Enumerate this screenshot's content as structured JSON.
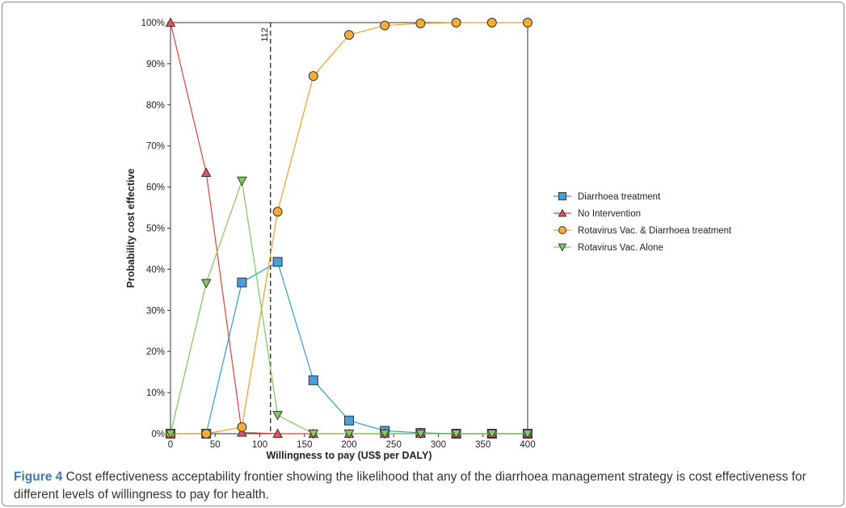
{
  "caption": {
    "label": "Figure 4",
    "text": " Cost effectiveness acceptability frontier showing the likelihood that any of the diarrhoea management strategy is cost effectiveness for different levels of willingness to pay for health."
  },
  "chart_data": {
    "type": "line",
    "xlabel": "Willingness to pay (US$ per DALY)",
    "ylabel": "Probability cost effective",
    "xlim": [
      0,
      400
    ],
    "ylim": [
      0,
      100
    ],
    "x_ticks": [
      "0",
      "50",
      "100",
      "150",
      "200",
      "250",
      "300",
      "350",
      "400"
    ],
    "y_ticks": [
      "0%",
      "10%",
      "20%",
      "30%",
      "40%",
      "50%",
      "60%",
      "70%",
      "80%",
      "90%",
      "100%"
    ],
    "grid": false,
    "legend_position": "right",
    "x": [
      0,
      40,
      80,
      120,
      160,
      200,
      240,
      280,
      320,
      360,
      400
    ],
    "threshold": {
      "x": 112,
      "label": "112"
    },
    "series": [
      {
        "name": "Diarrhoea  treatment",
        "marker": "square",
        "color": "#2e9bd6",
        "fill": "#4a9fd8",
        "values": [
          0,
          0,
          36.8,
          41.8,
          13,
          3.2,
          0.7,
          0.2,
          0,
          0,
          0
        ]
      },
      {
        "name": "No Intervention",
        "marker": "triangle-up",
        "color": "#e0403a",
        "fill": "#e8505a",
        "values": [
          100,
          63.5,
          0.3,
          0,
          0,
          0,
          0,
          0,
          0,
          0,
          0
        ]
      },
      {
        "name": "Rotavirus Vac. & Diarrhoea treatment",
        "marker": "circle",
        "color": "#f0a020",
        "fill": "#f5ad33",
        "values": [
          0,
          0,
          1.6,
          54,
          87,
          97,
          99.3,
          99.8,
          100,
          100,
          100
        ]
      },
      {
        "name": "Rotavirus Vac. Alone",
        "marker": "triangle-down",
        "color": "#7bc75a",
        "fill": "#86c862",
        "values": [
          0,
          36.6,
          61.5,
          4.5,
          0,
          0,
          0,
          0,
          0,
          0,
          0
        ]
      }
    ]
  }
}
